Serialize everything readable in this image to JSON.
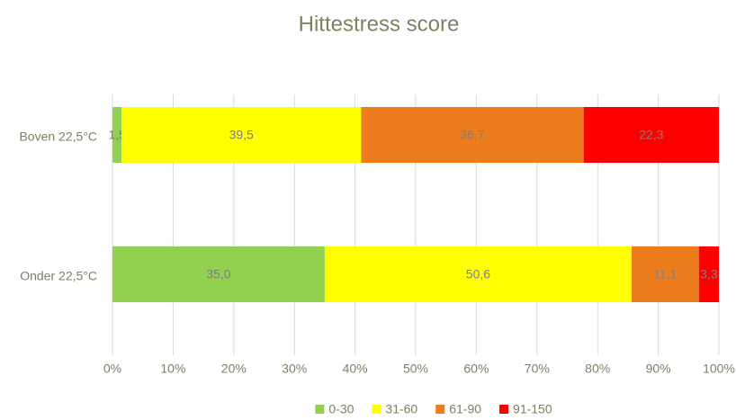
{
  "chart_data": {
    "type": "stacked-bar-horizontal",
    "title": "Hittestress score",
    "categories": [
      "Boven 22,5°C",
      "Onder 22,5°C"
    ],
    "series": [
      {
        "name": "0-30",
        "color": "#92d050",
        "values": [
          1.5,
          35.0
        ],
        "value_labels": [
          "1,5",
          "35,0"
        ]
      },
      {
        "name": "31-60",
        "color": "#ffff00",
        "values": [
          39.5,
          50.6
        ],
        "value_labels": [
          "39,5",
          "50,6"
        ]
      },
      {
        "name": "61-90",
        "color": "#ed7d1c",
        "values": [
          36.7,
          11.1
        ],
        "value_labels": [
          "36,7",
          "11,1"
        ]
      },
      {
        "name": "91-150",
        "color": "#ff0000",
        "values": [
          22.3,
          3.3
        ],
        "value_labels": [
          "22,3",
          "3,3"
        ]
      }
    ],
    "xlim": [
      0,
      100
    ],
    "xticks": [
      {
        "value": 0,
        "label": "0%"
      },
      {
        "value": 10,
        "label": "10%"
      },
      {
        "value": 20,
        "label": "20%"
      },
      {
        "value": 30,
        "label": "30%"
      },
      {
        "value": 40,
        "label": "40%"
      },
      {
        "value": 50,
        "label": "50%"
      },
      {
        "value": 60,
        "label": "60%"
      },
      {
        "value": 70,
        "label": "70%"
      },
      {
        "value": 80,
        "label": "80%"
      },
      {
        "value": 90,
        "label": "90%"
      },
      {
        "value": 100,
        "label": "100%"
      }
    ],
    "grid": true,
    "legend": "bottom"
  }
}
